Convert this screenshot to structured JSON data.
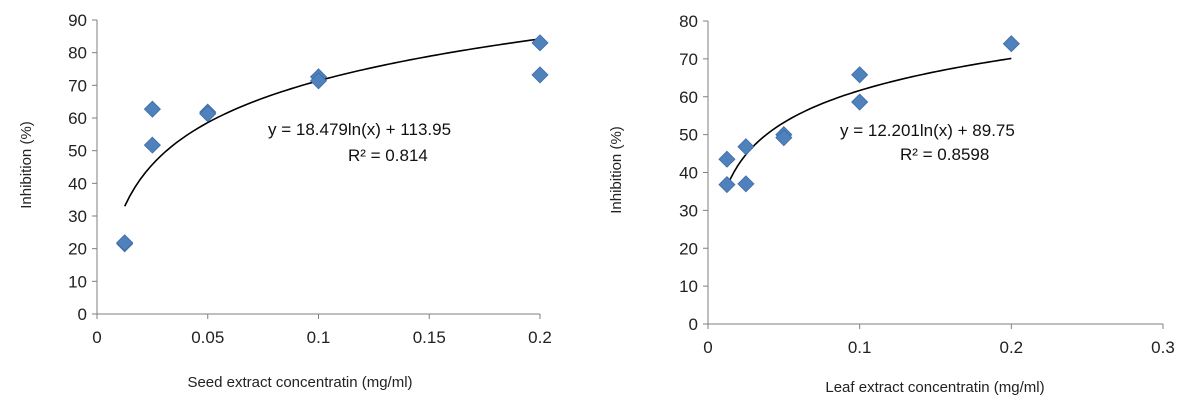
{
  "chart_data": [
    {
      "type": "scatter",
      "title": "",
      "xlabel": "Seed extract concentratin (mg/ml)",
      "ylabel": "Inhibition (%)",
      "xlim": [
        0,
        0.2
      ],
      "ylim": [
        0,
        90
      ],
      "xticks": [
        0,
        0.05,
        0.1,
        0.15,
        0.2
      ],
      "xtick_labels": [
        "0",
        "0.05",
        "0.1",
        "0.15",
        "0.2"
      ],
      "yticks": [
        0,
        10,
        20,
        30,
        40,
        50,
        60,
        70,
        80,
        90
      ],
      "ytick_labels": [
        "0",
        "10",
        "20",
        "30",
        "40",
        "50",
        "60",
        "70",
        "80",
        "90"
      ],
      "grid": false,
      "marker_color": "#4F81BD",
      "trend_color": "#000000",
      "points": [
        {
          "x": 0.0125,
          "y": 21.5
        },
        {
          "x": 0.0125,
          "y": 21.8
        },
        {
          "x": 0.025,
          "y": 62.7
        },
        {
          "x": 0.025,
          "y": 51.7
        },
        {
          "x": 0.05,
          "y": 61.8
        },
        {
          "x": 0.05,
          "y": 61.3
        },
        {
          "x": 0.1,
          "y": 72.6
        },
        {
          "x": 0.1,
          "y": 71.4
        },
        {
          "x": 0.2,
          "y": 83.0
        },
        {
          "x": 0.2,
          "y": 73.2
        }
      ],
      "trendline": {
        "type": "log",
        "a": 18.479,
        "b": 113.95,
        "x_start": 0.0125,
        "x_end": 0.2
      },
      "equation": "y = 18.479ln(x) + 113.95",
      "r2": "R² = 0.814"
    },
    {
      "type": "scatter",
      "title": "",
      "xlabel": "Leaf extract concentratin (mg/ml)",
      "ylabel": "Inhibition (%)",
      "xlim": [
        0,
        0.3
      ],
      "ylim": [
        0,
        80
      ],
      "xticks": [
        0,
        0.1,
        0.2,
        0.3
      ],
      "xtick_labels": [
        "0",
        "0.1",
        "0.2",
        "0.3"
      ],
      "yticks": [
        0,
        10,
        20,
        30,
        40,
        50,
        60,
        70,
        80
      ],
      "ytick_labels": [
        "0",
        "10",
        "20",
        "30",
        "40",
        "50",
        "60",
        "70",
        "80"
      ],
      "grid": false,
      "marker_color": "#4F81BD",
      "trend_color": "#000000",
      "points": [
        {
          "x": 0.0125,
          "y": 43.5
        },
        {
          "x": 0.0125,
          "y": 36.8
        },
        {
          "x": 0.025,
          "y": 46.8
        },
        {
          "x": 0.025,
          "y": 37.0
        },
        {
          "x": 0.05,
          "y": 50.0
        },
        {
          "x": 0.05,
          "y": 49.2
        },
        {
          "x": 0.1,
          "y": 65.8
        },
        {
          "x": 0.1,
          "y": 58.6
        },
        {
          "x": 0.2,
          "y": 74.0
        }
      ],
      "trendline": {
        "type": "log",
        "a": 12.201,
        "b": 89.75,
        "x_start": 0.0125,
        "x_end": 0.2
      },
      "equation": "y = 12.201ln(x) + 89.75",
      "r2": "R² = 0.8598"
    }
  ]
}
